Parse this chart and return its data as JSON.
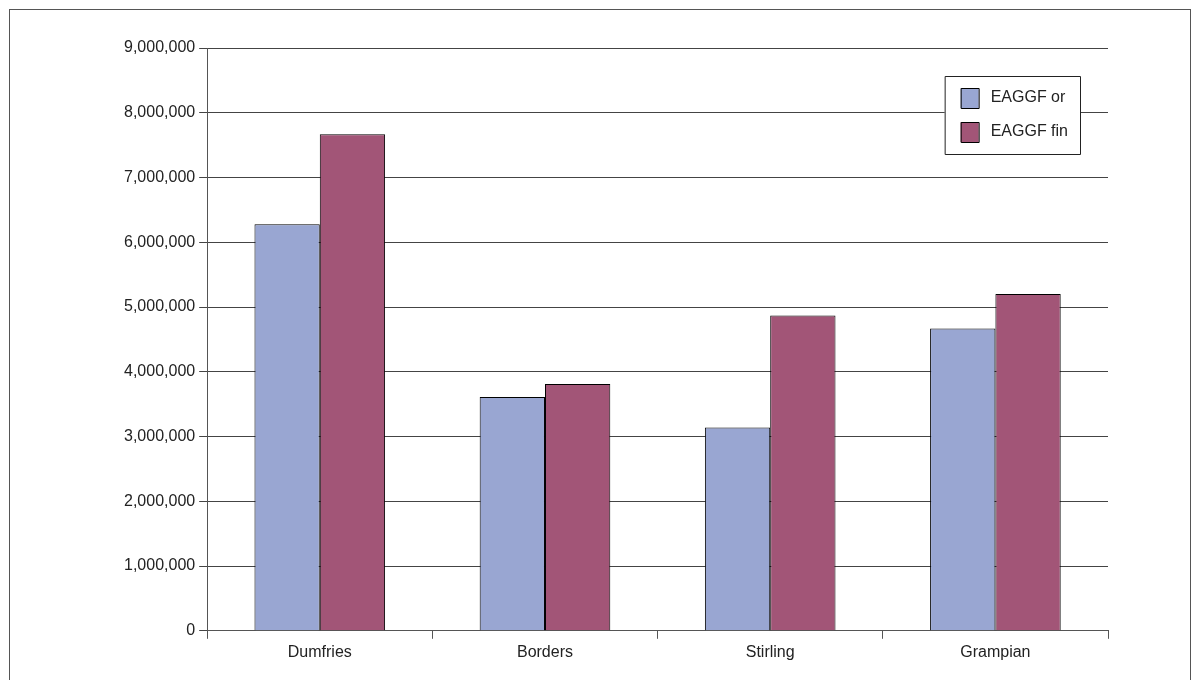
{
  "chart_data": {
    "type": "bar",
    "categories": [
      "Dumfries",
      "Borders",
      "Stirling",
      "Grampian"
    ],
    "series": [
      {
        "name": "EAGGF or",
        "color": "#99a6d2",
        "values": [
          6280000,
          3610000,
          3140000,
          4670000
        ]
      },
      {
        "name": "EAGGF fin",
        "color": "#a25577",
        "values": [
          7670000,
          3810000,
          4870000,
          5200000
        ]
      }
    ],
    "ylim": [
      0,
      9000000
    ],
    "yticks": [
      0,
      {
        "value": 1000000,
        "label": "1,000,000"
      },
      {
        "value": 2000000,
        "label": "2,000,000"
      },
      {
        "value": 3000000,
        "label": "3,000,000"
      },
      {
        "value": 4000000,
        "label": "4,000,000"
      },
      {
        "value": 5000000,
        "label": "5,000,000"
      },
      {
        "value": 6000000,
        "label": "6,000,000"
      },
      {
        "value": 7000000,
        "label": "7,000,000"
      },
      {
        "value": 8000000,
        "label": "8,000,000"
      },
      {
        "value": 9000000,
        "label": "9,000,000"
      }
    ],
    "grid": "y",
    "legend": "top right"
  }
}
